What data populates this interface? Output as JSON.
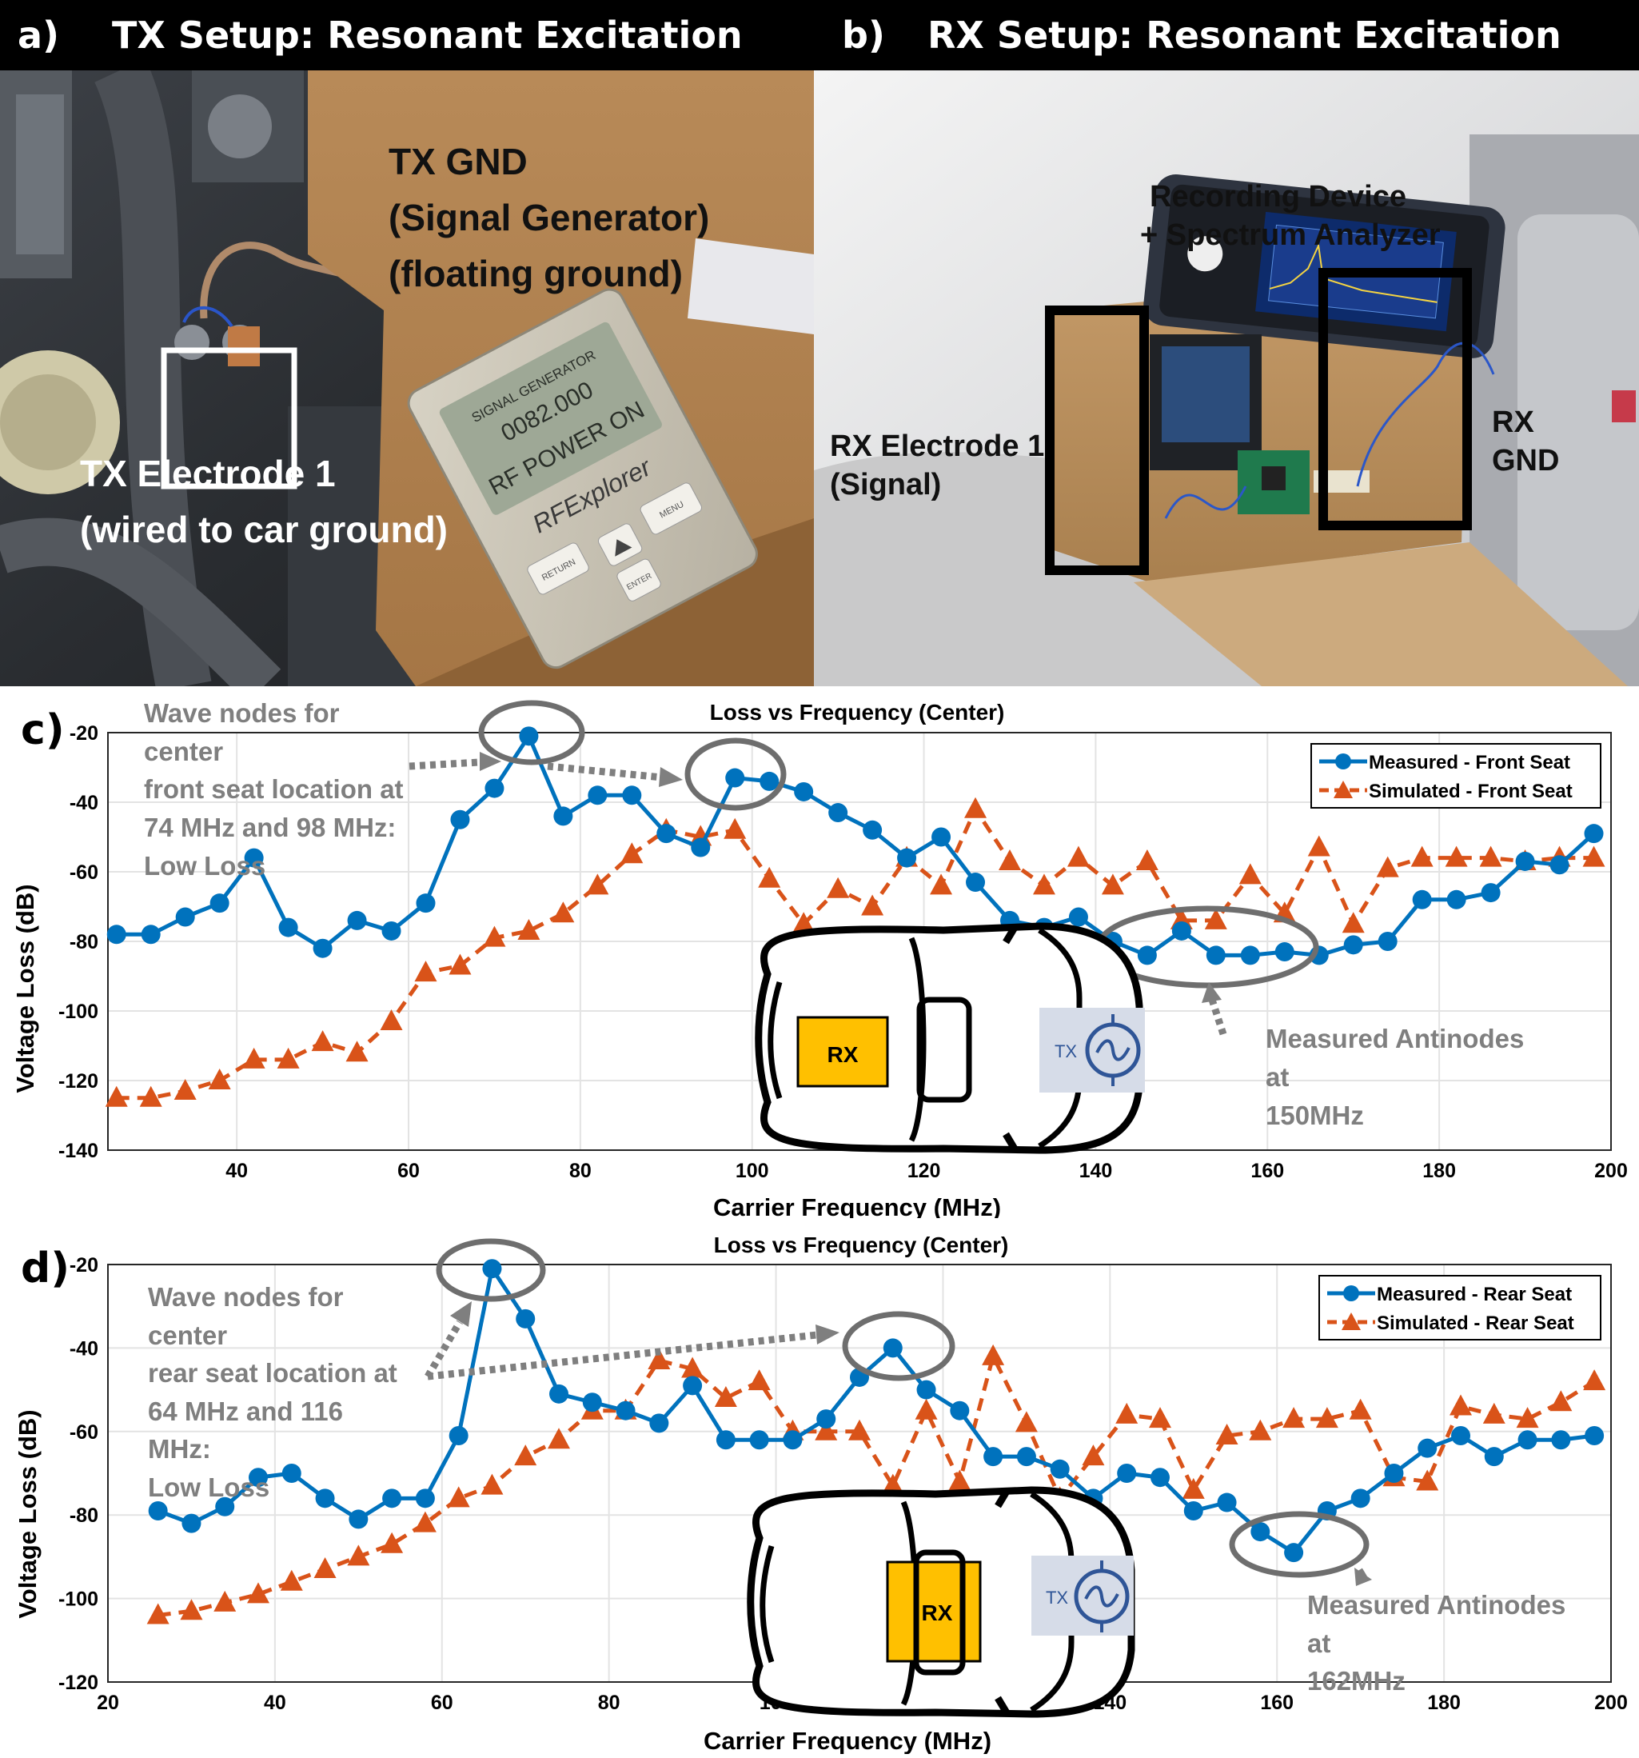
{
  "panel_a": {
    "letter": "a)",
    "title": "TX Setup: Resonant Excitation",
    "label_gnd_1": "TX GND",
    "label_gnd_2": "(Signal Generator)",
    "label_gnd_3": "(floating ground)",
    "label_elec_1": "TX Electrode 1",
    "label_elec_2": "(wired to car ground)",
    "device_brand": "RFExplorer",
    "device_screen_1": "SIGNAL GENERATOR",
    "device_screen_2": "0082.000",
    "device_screen_3": "RF POWER ON",
    "device_keys": [
      "RETURN",
      "ENTER",
      "MENU"
    ]
  },
  "panel_b": {
    "letter": "b)",
    "title": "RX Setup: Resonant Excitation",
    "label_device_1": "Recording Device",
    "label_device_2": "+ Spectrum Analyzer",
    "label_elec_1": "RX Electrode 1",
    "label_elec_2": "(Signal)",
    "label_gnd_1": "RX",
    "label_gnd_2": "GND"
  },
  "panel_c": {
    "letter": "c)",
    "annotation_nodes": [
      "Wave nodes for",
      "center",
      "front seat location at",
      "74 MHz and 98 MHz:",
      "Low Loss"
    ],
    "annotation_antinodes": [
      "Measured Antinodes",
      "at",
      "150MHz"
    ],
    "car_rx": "RX",
    "car_tx": "TX"
  },
  "panel_d": {
    "letter": "d)",
    "annotation_nodes": [
      "Wave nodes for",
      "center",
      "rear seat location at",
      "64 MHz and 116",
      "MHz:",
      "Low Loss"
    ],
    "annotation_antinodes": [
      "Measured Antinodes",
      "at",
      "162MHz"
    ],
    "car_rx": "RX",
    "car_tx": "TX"
  },
  "colors": {
    "measured": "#0072BD",
    "simulated": "#D95319",
    "annotation": "#7f7f7f",
    "rx_box": "#FFC000",
    "tx_box": "#d6dce8"
  },
  "chart_data": [
    {
      "type": "line",
      "title": "Loss vs Frequency (Center)",
      "xlabel": "Carrier Frequency (MHz)",
      "ylabel": "Voltage Loss (dB)",
      "xlim": [
        25,
        200
      ],
      "ylim": [
        -140,
        -20
      ],
      "xticks": [
        40,
        60,
        80,
        100,
        120,
        140,
        160,
        180,
        200
      ],
      "yticks": [
        -20,
        -40,
        -60,
        -80,
        -100,
        -120,
        -140
      ],
      "grid": true,
      "legend": "top-right",
      "series": [
        {
          "name": "Measured - Front Seat",
          "marker": "circle",
          "line": "solid",
          "x": [
            26,
            30,
            34,
            38,
            42,
            46,
            50,
            54,
            58,
            62,
            66,
            70,
            74,
            78,
            82,
            86,
            90,
            94,
            98,
            102,
            106,
            110,
            114,
            118,
            122,
            126,
            130,
            134,
            138,
            142,
            146,
            150,
            154,
            158,
            162,
            166,
            170,
            174,
            178,
            182,
            186,
            190,
            194,
            198
          ],
          "y": [
            -78,
            -78,
            -73,
            -69,
            -56,
            -76,
            -82,
            -74,
            -77,
            -69,
            -45,
            -36,
            -21,
            -44,
            -38,
            -38,
            -49,
            -53,
            -33,
            -34,
            -37,
            -43,
            -48,
            -56,
            -50,
            -63,
            -74,
            -76,
            -73,
            -80,
            -84,
            -77,
            -84,
            -84,
            -83,
            -84,
            -81,
            -80,
            -68,
            -68,
            -66,
            -57,
            -58,
            -49
          ]
        },
        {
          "name": "Simulated - Front Seat",
          "marker": "triangle",
          "line": "dashed",
          "x": [
            26,
            30,
            34,
            38,
            42,
            46,
            50,
            54,
            58,
            62,
            66,
            70,
            74,
            78,
            82,
            86,
            90,
            94,
            98,
            102,
            106,
            110,
            114,
            118,
            122,
            126,
            130,
            134,
            138,
            142,
            146,
            150,
            154,
            158,
            162,
            166,
            170,
            174,
            178,
            182,
            186,
            190,
            194,
            198
          ],
          "y": [
            -125,
            -125,
            -123,
            -120,
            -114,
            -114,
            -109,
            -112,
            -103,
            -89,
            -87,
            -79,
            -77,
            -72,
            -64,
            -55,
            -48,
            -50,
            -48,
            -62,
            -75,
            -65,
            -70,
            -56,
            -64,
            -42,
            -57,
            -64,
            -56,
            -64,
            -57,
            -74,
            -74,
            -61,
            -72,
            -53,
            -75,
            -59,
            -56,
            -56,
            -56,
            -57,
            -56,
            -56
          ]
        }
      ]
    },
    {
      "type": "line",
      "title": "Loss vs Frequency (Center)",
      "xlabel": "Carrier Frequency (MHz)",
      "ylabel": "Voltage Loss (dB)",
      "xlim": [
        20,
        200
      ],
      "ylim": [
        -120,
        -20
      ],
      "xticks": [
        20,
        40,
        60,
        80,
        100,
        120,
        140,
        160,
        180,
        200
      ],
      "yticks": [
        -20,
        -40,
        -60,
        -80,
        -100,
        -120
      ],
      "grid": true,
      "legend": "top-right",
      "series": [
        {
          "name": "Measured - Rear Seat",
          "marker": "circle",
          "line": "solid",
          "x": [
            26,
            30,
            34,
            38,
            42,
            46,
            50,
            54,
            58,
            62,
            66,
            70,
            74,
            78,
            82,
            86,
            90,
            94,
            98,
            102,
            106,
            110,
            114,
            118,
            122,
            126,
            130,
            134,
            138,
            142,
            146,
            150,
            154,
            158,
            162,
            166,
            170,
            174,
            178,
            182,
            186,
            190,
            194,
            198
          ],
          "y": [
            -79,
            -82,
            -78,
            -71,
            -70,
            -76,
            -81,
            -76,
            -76,
            -61,
            -21,
            -33,
            -51,
            -53,
            -55,
            -58,
            -49,
            -62,
            -62,
            -62,
            -57,
            -47,
            -40,
            -50,
            -55,
            -66,
            -66,
            -69,
            -76,
            -70,
            -71,
            -79,
            -77,
            -84,
            -89,
            -79,
            -76,
            -70,
            -64,
            -61,
            -66,
            -62,
            -62,
            -61
          ]
        },
        {
          "name": "Simulated - Rear Seat",
          "marker": "triangle",
          "line": "dashed",
          "x": [
            26,
            30,
            34,
            38,
            42,
            46,
            50,
            54,
            58,
            62,
            66,
            70,
            74,
            78,
            82,
            86,
            90,
            94,
            98,
            102,
            106,
            110,
            114,
            118,
            122,
            126,
            130,
            134,
            138,
            142,
            146,
            150,
            154,
            158,
            162,
            166,
            170,
            174,
            178,
            182,
            186,
            190,
            194,
            198
          ],
          "y": [
            -104,
            -103,
            -101,
            -99,
            -96,
            -93,
            -90,
            -87,
            -82,
            -76,
            -73,
            -66,
            -62,
            -55,
            -55,
            -43,
            -45,
            -52,
            -48,
            -60,
            -60,
            -60,
            -73,
            -55,
            -72,
            -42,
            -58,
            -76,
            -66,
            -56,
            -57,
            -74,
            -61,
            -60,
            -57,
            -57,
            -55,
            -71,
            -72,
            -54,
            -56,
            -57,
            -53,
            -48
          ]
        }
      ]
    }
  ]
}
